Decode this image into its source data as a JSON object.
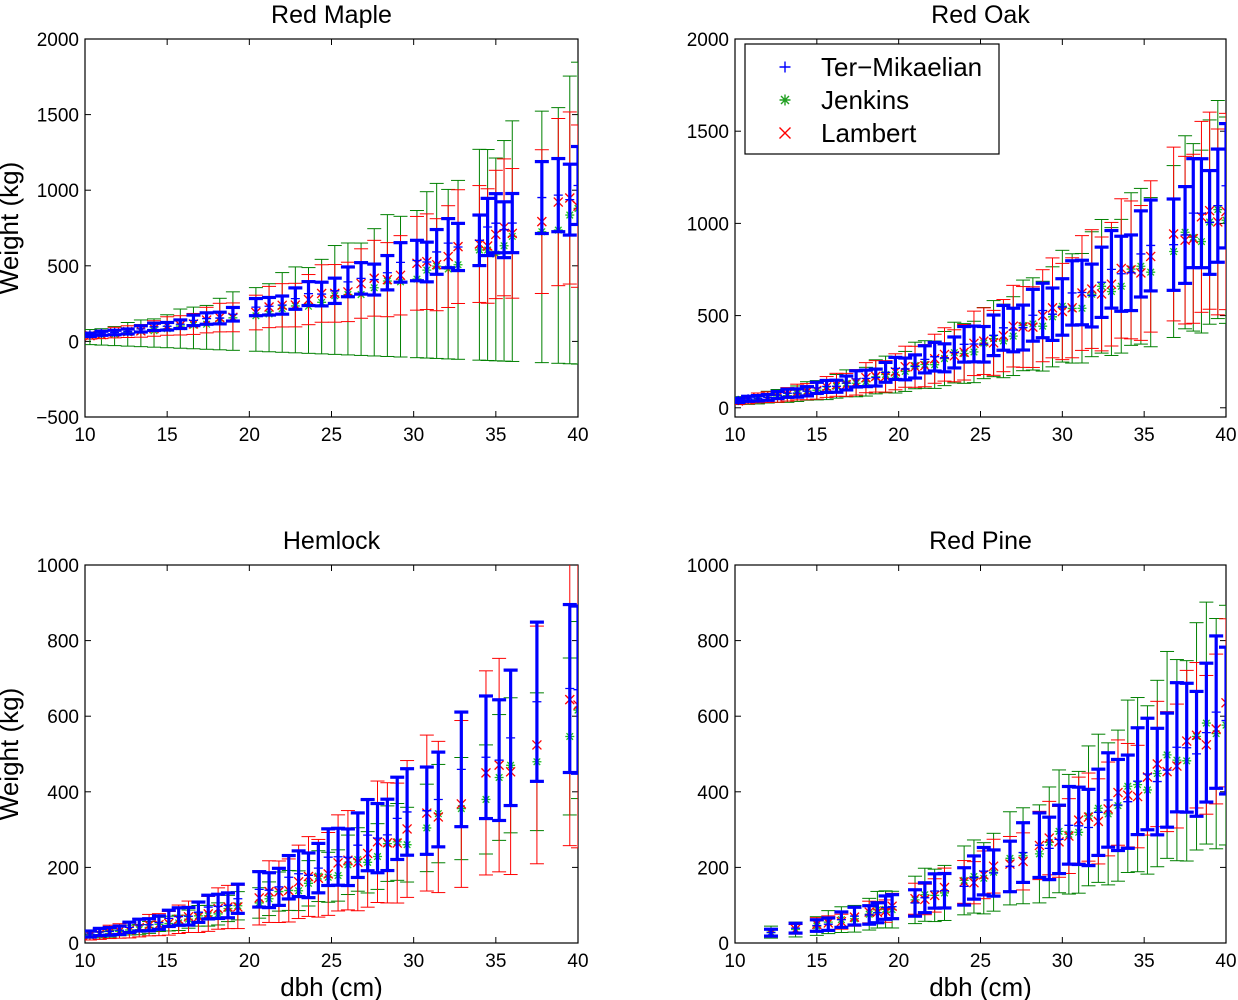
{
  "figure": {
    "legend": [
      {
        "name": "Ter−Mikaelian",
        "color": "#0000ff",
        "marker": "+"
      },
      {
        "name": "Jenkins",
        "color": "#008000",
        "marker": "*"
      },
      {
        "name": "Lambert",
        "color": "#ff0000",
        "marker": "x"
      }
    ],
    "xlabel": "dbh (cm)",
    "ylabel": "Weight (kg)"
  },
  "chart_data": [
    {
      "type": "scatter",
      "title": "Red Maple",
      "xlabel": "",
      "ylabel": "Weight (kg)",
      "xlim": [
        10,
        40
      ],
      "ylim": [
        -500,
        2000
      ],
      "xticks": [
        10,
        15,
        20,
        25,
        30,
        35,
        40
      ],
      "yticks": [
        -500,
        0,
        500,
        1000,
        1500,
        2000
      ],
      "x_samples": [
        10.3,
        11,
        11.8,
        12.6,
        13.4,
        14.2,
        15,
        15.8,
        16.6,
        17.4,
        18.2,
        19,
        20.4,
        21.2,
        22,
        22.8,
        23.6,
        24.4,
        25.2,
        26,
        26.8,
        27.6,
        28.4,
        29.2,
        30.2,
        30.8,
        31.4,
        32.1,
        32.7,
        34,
        34.5,
        35,
        35.5,
        36,
        37.8,
        38.8,
        39.5,
        40
      ],
      "series": [
        {
          "name": "Ter−Mikaelian",
          "color": "#0000ff",
          "marker": "+",
          "fit": {
            "a": 0.19,
            "b": 2.33
          },
          "error": {
            "kind": "relative",
            "value": 0.25
          }
        },
        {
          "name": "Jenkins",
          "color": "#008000",
          "marker": "*",
          "fit": {
            "a": 0.155,
            "b": 2.33
          },
          "error": {
            "kind": "wide",
            "upper_ratio": 2.1,
            "lower_min": -150
          }
        },
        {
          "name": "Lambert",
          "color": "#ff0000",
          "marker": "x",
          "fit": {
            "a": 0.175,
            "b": 2.33
          },
          "error": {
            "kind": "relative",
            "value": 0.6
          }
        }
      ]
    },
    {
      "type": "scatter",
      "title": "Red Oak",
      "xlabel": "",
      "ylabel": "",
      "xlim": [
        10,
        40
      ],
      "ylim": [
        -50,
        2000
      ],
      "xticks": [
        10,
        15,
        20,
        25,
        30,
        35,
        40
      ],
      "yticks": [
        0,
        500,
        1000,
        1500,
        2000
      ],
      "legend_position": "top-left",
      "x_samples": [
        10.2,
        10.8,
        11.4,
        12,
        12.6,
        13.2,
        13.8,
        14.4,
        15,
        15.6,
        16.2,
        16.8,
        17.4,
        18,
        18.6,
        19.2,
        19.8,
        20.4,
        21,
        21.6,
        22.2,
        22.8,
        23.4,
        24,
        24.6,
        25.2,
        25.8,
        26.4,
        27,
        27.6,
        28.2,
        28.8,
        29.4,
        30,
        30.6,
        31.2,
        31.8,
        32.4,
        33,
        33.6,
        34.2,
        34.8,
        35.4,
        36.8,
        37.5,
        38,
        38.5,
        39,
        39.5,
        40
      ],
      "series": [
        {
          "name": "Ter−Mikaelian",
          "color": "#0000ff",
          "marker": "+",
          "fit": {
            "a": 0.135,
            "b": 2.45
          },
          "error": {
            "kind": "relative",
            "value": 0.28
          }
        },
        {
          "name": "Jenkins",
          "color": "#008000",
          "marker": "*",
          "fit": {
            "a": 0.125,
            "b": 2.45
          },
          "error": {
            "kind": "relative",
            "value": 0.55
          }
        },
        {
          "name": "Lambert",
          "color": "#ff0000",
          "marker": "x",
          "fit": {
            "a": 0.13,
            "b": 2.45
          },
          "error": {
            "kind": "relative",
            "value": 0.5
          }
        }
      ]
    },
    {
      "type": "scatter",
      "title": "Hemlock",
      "xlabel": "dbh (cm)",
      "ylabel": "Weight (kg)",
      "xlim": [
        10,
        40
      ],
      "ylim": [
        0,
        1000
      ],
      "xticks": [
        10,
        15,
        20,
        25,
        30,
        35,
        40
      ],
      "yticks": [
        0,
        200,
        400,
        600,
        800,
        1000
      ],
      "x_samples": [
        10.3,
        10.9,
        11.5,
        12.1,
        12.7,
        13.3,
        13.9,
        14.5,
        15.1,
        15.7,
        16.3,
        16.9,
        17.5,
        18.1,
        18.7,
        19.3,
        20.6,
        21.2,
        21.8,
        22.4,
        23,
        23.6,
        24.2,
        24.8,
        25.4,
        26,
        26.6,
        27.2,
        27.8,
        28.4,
        29,
        29.6,
        30.8,
        31.5,
        32.9,
        34.4,
        35.2,
        35.9,
        37.5,
        39.5,
        40
      ],
      "series": [
        {
          "name": "Ter−Mikaelian",
          "color": "#0000ff",
          "marker": "+",
          "fit": {
            "a": 0.07,
            "b": 2.5
          },
          "error": {
            "kind": "relative",
            "value": 0.33
          }
        },
        {
          "name": "Jenkins",
          "color": "#008000",
          "marker": "*",
          "fit": {
            "a": 0.058,
            "b": 2.5
          },
          "error": {
            "kind": "relative",
            "value": 0.38
          }
        },
        {
          "name": "Lambert",
          "color": "#ff0000",
          "marker": "x",
          "fit": {
            "a": 0.062,
            "b": 2.5
          },
          "error": {
            "kind": "relative",
            "value": 0.6
          }
        }
      ]
    },
    {
      "type": "scatter",
      "title": "Red Pine",
      "xlabel": "dbh (cm)",
      "ylabel": "",
      "xlim": [
        10,
        40
      ],
      "ylim": [
        0,
        1000
      ],
      "xticks": [
        10,
        15,
        20,
        25,
        30,
        35,
        40
      ],
      "yticks": [
        0,
        200,
        400,
        600,
        800,
        1000
      ],
      "x_samples": [
        12.2,
        13.7,
        15,
        15.7,
        16.5,
        17.3,
        18.2,
        18.7,
        19.2,
        19.6,
        21,
        21.6,
        22.2,
        22.8,
        24,
        24.6,
        25.2,
        25.8,
        26.8,
        27.6,
        28.6,
        29.2,
        29.8,
        30.4,
        31,
        31.6,
        32.2,
        32.8,
        33.4,
        34,
        34.6,
        35.2,
        35.8,
        36.4,
        37,
        37.6,
        38.2,
        38.8,
        39.4,
        40
      ],
      "series": [
        {
          "name": "Ter−Mikaelian",
          "color": "#0000ff",
          "marker": "+",
          "fit": {
            "a": 0.041,
            "b": 2.6
          },
          "error": {
            "kind": "relative",
            "value": 0.33
          }
        },
        {
          "name": "Jenkins",
          "color": "#008000",
          "marker": "*",
          "fit": {
            "a": 0.041,
            "b": 2.6
          },
          "error": {
            "kind": "relative",
            "value": 0.55
          }
        },
        {
          "name": "Lambert",
          "color": "#ff0000",
          "marker": "x",
          "fit": {
            "a": 0.041,
            "b": 2.6
          },
          "error": {
            "kind": "relative",
            "value": 0.35
          }
        }
      ]
    }
  ]
}
